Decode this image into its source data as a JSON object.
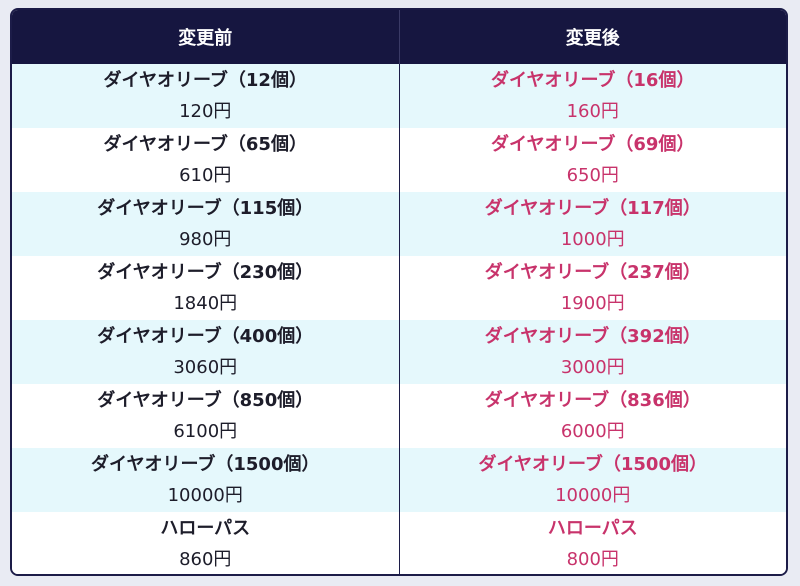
{
  "header": {
    "before_label": "変更前",
    "after_label": "変更後"
  },
  "colors": {
    "header_bg": "#161640",
    "after_text": "#c8336b",
    "row_tint": "#e5f8fc"
  },
  "rows": [
    {
      "before_name": "ダイヤオリーブ（12個）",
      "before_price": "120円",
      "after_name": "ダイヤオリーブ（16個）",
      "after_price": "160円"
    },
    {
      "before_name": "ダイヤオリーブ（65個）",
      "before_price": "610円",
      "after_name": "ダイヤオリーブ（69個）",
      "after_price": "650円"
    },
    {
      "before_name": "ダイヤオリーブ（115個）",
      "before_price": "980円",
      "after_name": "ダイヤオリーブ（117個）",
      "after_price": "1000円"
    },
    {
      "before_name": "ダイヤオリーブ（230個）",
      "before_price": "1840円",
      "after_name": "ダイヤオリーブ（237個）",
      "after_price": "1900円"
    },
    {
      "before_name": "ダイヤオリーブ（400個）",
      "before_price": "3060円",
      "after_name": "ダイヤオリーブ（392個）",
      "after_price": "3000円"
    },
    {
      "before_name": "ダイヤオリーブ（850個）",
      "before_price": "6100円",
      "after_name": "ダイヤオリーブ（836個）",
      "after_price": "6000円"
    },
    {
      "before_name": "ダイヤオリーブ（1500個）",
      "before_price": "10000円",
      "after_name": "ダイヤオリーブ（1500個）",
      "after_price": "10000円"
    },
    {
      "before_name": "ハローパス",
      "before_price": "860円",
      "after_name": "ハローパス",
      "after_price": "800円"
    }
  ]
}
